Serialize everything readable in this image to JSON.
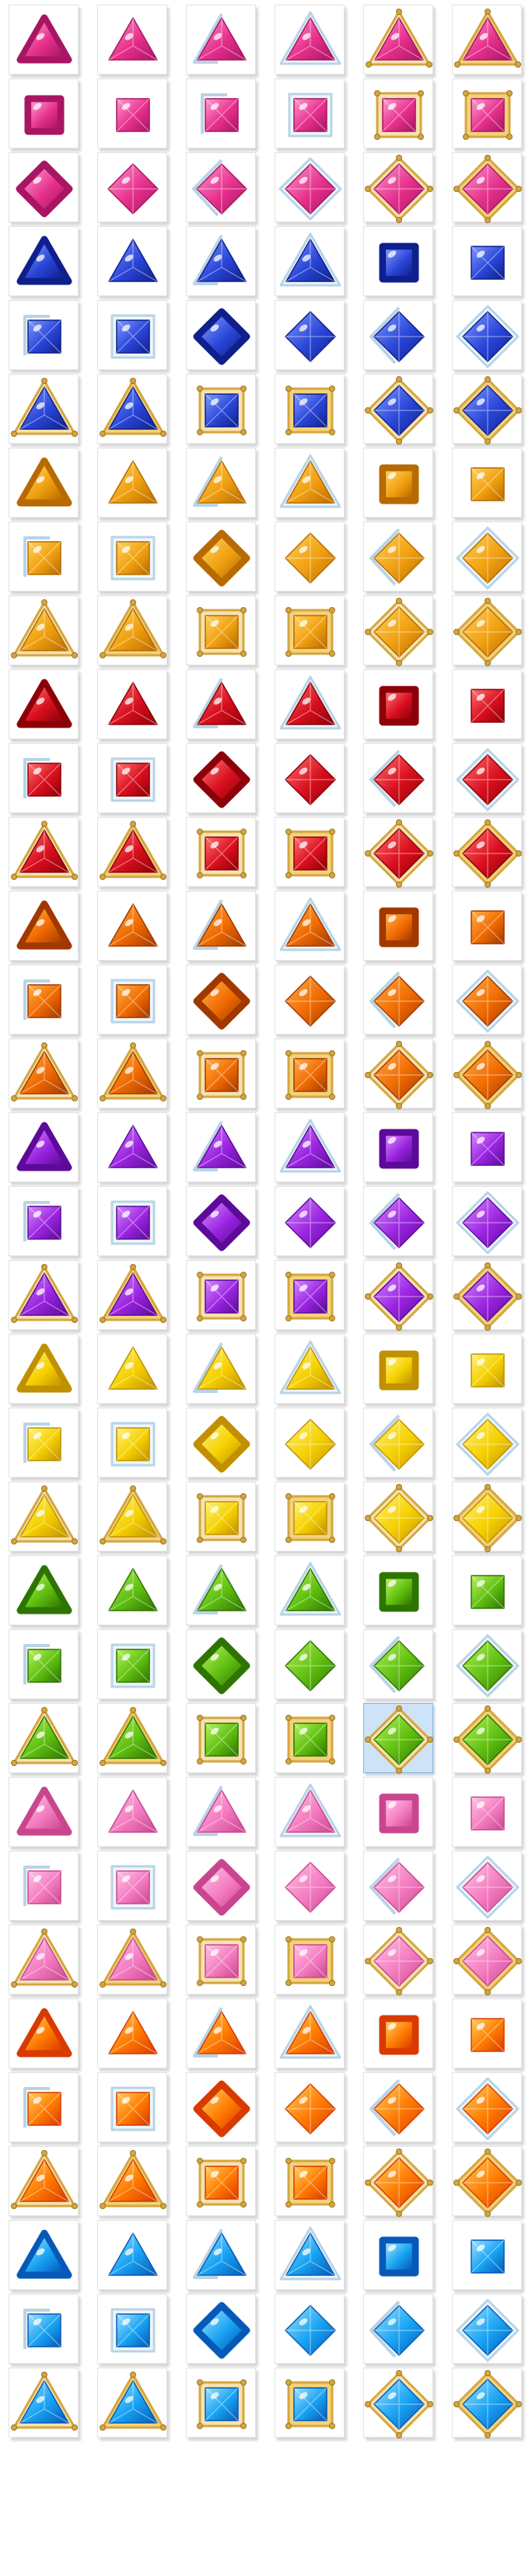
{
  "grid": {
    "columns": 6,
    "rows": 36,
    "selected": {
      "row": 23,
      "col": 4
    }
  },
  "colors": {
    "pink": [
      "#ff9ad0",
      "#e6308c",
      "#a81562"
    ],
    "blue": [
      "#7f9bff",
      "#2a46d8",
      "#0f1f8c"
    ],
    "amber": [
      "#ffd25e",
      "#f0a010",
      "#b76a00"
    ],
    "red": [
      "#ff7373",
      "#d90f1e",
      "#8c0008"
    ],
    "orange": [
      "#ffb04a",
      "#f06a00",
      "#a03800"
    ],
    "purple": [
      "#d68bff",
      "#9a24e0",
      "#5c0a99"
    ],
    "yellow": [
      "#fff27a",
      "#f5d000",
      "#c09000"
    ],
    "green": [
      "#b6f25c",
      "#5fbf10",
      "#2e7400"
    ],
    "lightpink": [
      "#ffc4e6",
      "#f47cc0",
      "#c9468e"
    ],
    "fireorange": [
      "#ffd060",
      "#ff7a00",
      "#d83a00"
    ],
    "skyblue": [
      "#9ee2ff",
      "#17a2f2",
      "#0659b8"
    ],
    "gold": "#d4a640",
    "silver": "#b8d4e6"
  },
  "gem_rows": [
    {
      "color": "pink",
      "cells": [
        [
          "roundtri",
          "none"
        ],
        [
          "tri",
          "none"
        ],
        [
          "tri",
          "silverleft"
        ],
        [
          "tri",
          "silverframe"
        ],
        [
          "tri",
          "goldframe"
        ],
        [
          "tri",
          "goldframe2"
        ]
      ]
    },
    {
      "color": "pink",
      "cells": [
        [
          "roundsq",
          "none"
        ],
        [
          "sq",
          "none"
        ],
        [
          "sq",
          "silverleft"
        ],
        [
          "sq",
          "silverframe"
        ],
        [
          "sq",
          "goldframe"
        ],
        [
          "sq",
          "goldframe2"
        ]
      ]
    },
    {
      "color": "pink",
      "cells": [
        [
          "roundrh",
          "none"
        ],
        [
          "rh",
          "none"
        ],
        [
          "rh",
          "silverleft"
        ],
        [
          "rh",
          "silverframe"
        ],
        [
          "rh",
          "goldframe"
        ],
        [
          "rh",
          "goldframe2"
        ]
      ]
    },
    {
      "color": "blue",
      "cells": [
        [
          "roundtri",
          "none"
        ],
        [
          "tri",
          "none"
        ],
        [
          "tri",
          "silverleft"
        ],
        [
          "tri",
          "silverframe"
        ],
        [
          "roundsq",
          "none"
        ],
        [
          "sq",
          "none"
        ]
      ]
    },
    {
      "color": "blue",
      "cells": [
        [
          "sq",
          "silverleft"
        ],
        [
          "sq",
          "silverframe"
        ],
        [
          "roundrh",
          "none"
        ],
        [
          "rh",
          "none"
        ],
        [
          "rh",
          "silverleft"
        ],
        [
          "rh",
          "silverframe"
        ]
      ]
    },
    {
      "color": "blue",
      "cells": [
        [
          "tri",
          "goldframe"
        ],
        [
          "tri",
          "goldframe2"
        ],
        [
          "sq",
          "goldframe"
        ],
        [
          "sq",
          "goldframe2"
        ],
        [
          "rh",
          "goldframe"
        ],
        [
          "rh",
          "goldframe2"
        ]
      ]
    },
    {
      "color": "amber",
      "cells": [
        [
          "roundtri",
          "none"
        ],
        [
          "tri",
          "none"
        ],
        [
          "tri",
          "silverleft"
        ],
        [
          "tri",
          "silverframe"
        ],
        [
          "roundsq",
          "none"
        ],
        [
          "sq",
          "none"
        ]
      ]
    },
    {
      "color": "amber",
      "cells": [
        [
          "sq",
          "silverleft"
        ],
        [
          "sq",
          "silverframe"
        ],
        [
          "roundrh",
          "none"
        ],
        [
          "rh",
          "none"
        ],
        [
          "rh",
          "silverleft"
        ],
        [
          "rh",
          "silverframe"
        ]
      ]
    },
    {
      "color": "amber",
      "cells": [
        [
          "tri",
          "goldframe"
        ],
        [
          "tri",
          "goldframe2"
        ],
        [
          "sq",
          "goldframe"
        ],
        [
          "sq",
          "goldframe2"
        ],
        [
          "rh",
          "goldframe"
        ],
        [
          "rh",
          "goldframe2"
        ]
      ]
    },
    {
      "color": "red",
      "cells": [
        [
          "roundtri",
          "none"
        ],
        [
          "tri",
          "none"
        ],
        [
          "tri",
          "silverleft"
        ],
        [
          "tri",
          "silverframe"
        ],
        [
          "roundsq",
          "none"
        ],
        [
          "sq",
          "none"
        ]
      ]
    },
    {
      "color": "red",
      "cells": [
        [
          "sq",
          "silverleft"
        ],
        [
          "sq",
          "silverframe"
        ],
        [
          "roundrh",
          "none"
        ],
        [
          "rh",
          "none"
        ],
        [
          "rh",
          "silverleft"
        ],
        [
          "rh",
          "silverframe"
        ]
      ]
    },
    {
      "color": "red",
      "cells": [
        [
          "tri",
          "goldframe"
        ],
        [
          "tri",
          "goldframe2"
        ],
        [
          "sq",
          "goldframe"
        ],
        [
          "sq",
          "goldframe2"
        ],
        [
          "rh",
          "goldframe"
        ],
        [
          "rh",
          "goldframe2"
        ]
      ]
    },
    {
      "color": "orange",
      "cells": [
        [
          "roundtri",
          "none"
        ],
        [
          "tri",
          "none"
        ],
        [
          "tri",
          "silverleft"
        ],
        [
          "tri",
          "silverframe"
        ],
        [
          "roundsq",
          "none"
        ],
        [
          "sq",
          "none"
        ]
      ]
    },
    {
      "color": "orange",
      "cells": [
        [
          "sq",
          "silverleft"
        ],
        [
          "sq",
          "silverframe"
        ],
        [
          "roundrh",
          "none"
        ],
        [
          "rh",
          "none"
        ],
        [
          "rh",
          "silverleft"
        ],
        [
          "rh",
          "silverframe"
        ]
      ]
    },
    {
      "color": "orange",
      "cells": [
        [
          "tri",
          "goldframe"
        ],
        [
          "tri",
          "goldframe2"
        ],
        [
          "sq",
          "goldframe"
        ],
        [
          "sq",
          "goldframe2"
        ],
        [
          "rh",
          "goldframe"
        ],
        [
          "rh",
          "goldframe2"
        ]
      ]
    },
    {
      "color": "purple",
      "cells": [
        [
          "roundtri",
          "none"
        ],
        [
          "tri",
          "none"
        ],
        [
          "tri",
          "silverleft"
        ],
        [
          "tri",
          "silverframe"
        ],
        [
          "roundsq",
          "none"
        ],
        [
          "sq",
          "none"
        ]
      ]
    },
    {
      "color": "purple",
      "cells": [
        [
          "sq",
          "silverleft"
        ],
        [
          "sq",
          "silverframe"
        ],
        [
          "roundrh",
          "none"
        ],
        [
          "rh",
          "none"
        ],
        [
          "rh",
          "silverleft"
        ],
        [
          "rh",
          "silverframe"
        ]
      ]
    },
    {
      "color": "purple",
      "cells": [
        [
          "tri",
          "goldframe"
        ],
        [
          "tri",
          "goldframe2"
        ],
        [
          "sq",
          "goldframe"
        ],
        [
          "sq",
          "goldframe2"
        ],
        [
          "rh",
          "goldframe"
        ],
        [
          "rh",
          "goldframe2"
        ]
      ]
    },
    {
      "color": "yellow",
      "cells": [
        [
          "roundtri",
          "none"
        ],
        [
          "tri",
          "none"
        ],
        [
          "tri",
          "silverleft"
        ],
        [
          "tri",
          "silverframe"
        ],
        [
          "roundsq",
          "none"
        ],
        [
          "sq",
          "none"
        ]
      ]
    },
    {
      "color": "yellow",
      "cells": [
        [
          "sq",
          "silverleft"
        ],
        [
          "sq",
          "silverframe"
        ],
        [
          "roundrh",
          "none"
        ],
        [
          "rh",
          "none"
        ],
        [
          "rh",
          "silverleft"
        ],
        [
          "rh",
          "silverframe"
        ]
      ]
    },
    {
      "color": "yellow",
      "cells": [
        [
          "tri",
          "goldframe"
        ],
        [
          "tri",
          "goldframe2"
        ],
        [
          "sq",
          "goldframe"
        ],
        [
          "sq",
          "goldframe2"
        ],
        [
          "rh",
          "goldframe"
        ],
        [
          "rh",
          "goldframe2"
        ]
      ]
    },
    {
      "color": "green",
      "cells": [
        [
          "roundtri",
          "none"
        ],
        [
          "tri",
          "none"
        ],
        [
          "tri",
          "silverleft"
        ],
        [
          "tri",
          "silverframe"
        ],
        [
          "roundsq",
          "none"
        ],
        [
          "sq",
          "none"
        ]
      ]
    },
    {
      "color": "green",
      "cells": [
        [
          "sq",
          "silverleft"
        ],
        [
          "sq",
          "silverframe"
        ],
        [
          "roundrh",
          "none"
        ],
        [
          "rh",
          "none"
        ],
        [
          "rh",
          "silverleft"
        ],
        [
          "rh",
          "silverframe"
        ]
      ]
    },
    {
      "color": "green",
      "cells": [
        [
          "tri",
          "goldframe"
        ],
        [
          "tri",
          "goldframe2"
        ],
        [
          "sq",
          "goldframe"
        ],
        [
          "sq",
          "goldframe2"
        ],
        [
          "rh",
          "goldframe"
        ],
        [
          "rh",
          "goldframe2"
        ]
      ]
    },
    {
      "color": "lightpink",
      "cells": [
        [
          "roundtri",
          "none"
        ],
        [
          "tri",
          "none"
        ],
        [
          "tri",
          "silverleft"
        ],
        [
          "tri",
          "silverframe"
        ],
        [
          "roundsq",
          "none"
        ],
        [
          "sq",
          "none"
        ]
      ]
    },
    {
      "color": "lightpink",
      "cells": [
        [
          "sq",
          "silverleft"
        ],
        [
          "sq",
          "silverframe"
        ],
        [
          "roundrh",
          "none"
        ],
        [
          "rh",
          "none"
        ],
        [
          "rh",
          "silverleft"
        ],
        [
          "rh",
          "silverframe"
        ]
      ]
    },
    {
      "color": "lightpink",
      "cells": [
        [
          "tri",
          "goldframe"
        ],
        [
          "tri",
          "goldframe2"
        ],
        [
          "sq",
          "goldframe"
        ],
        [
          "sq",
          "goldframe2"
        ],
        [
          "rh",
          "goldframe"
        ],
        [
          "rh",
          "goldframe2"
        ]
      ]
    },
    {
      "color": "fireorange",
      "cells": [
        [
          "roundtri",
          "none"
        ],
        [
          "tri",
          "none"
        ],
        [
          "tri",
          "silverleft"
        ],
        [
          "tri",
          "silverframe"
        ],
        [
          "roundsq",
          "none"
        ],
        [
          "sq",
          "none"
        ]
      ]
    },
    {
      "color": "fireorange",
      "cells": [
        [
          "sq",
          "silverleft"
        ],
        [
          "sq",
          "silverframe"
        ],
        [
          "roundrh",
          "none"
        ],
        [
          "rh",
          "none"
        ],
        [
          "rh",
          "silverleft"
        ],
        [
          "rh",
          "silverframe"
        ]
      ]
    },
    {
      "color": "fireorange",
      "cells": [
        [
          "tri",
          "goldframe"
        ],
        [
          "tri",
          "goldframe2"
        ],
        [
          "sq",
          "goldframe"
        ],
        [
          "sq",
          "goldframe2"
        ],
        [
          "rh",
          "goldframe"
        ],
        [
          "rh",
          "goldframe2"
        ]
      ]
    },
    {
      "color": "skyblue",
      "cells": [
        [
          "roundtri",
          "none"
        ],
        [
          "tri",
          "none"
        ],
        [
          "tri",
          "silverleft"
        ],
        [
          "tri",
          "silverframe"
        ],
        [
          "roundsq",
          "none"
        ],
        [
          "sq",
          "none"
        ]
      ]
    },
    {
      "color": "skyblue",
      "cells": [
        [
          "sq",
          "silverleft"
        ],
        [
          "sq",
          "silverframe"
        ],
        [
          "roundrh",
          "none"
        ],
        [
          "rh",
          "none"
        ],
        [
          "rh",
          "silverleft"
        ],
        [
          "rh",
          "silverframe"
        ]
      ]
    },
    {
      "color": "skyblue",
      "cells": [
        [
          "tri",
          "goldframe"
        ],
        [
          "tri",
          "goldframe2"
        ],
        [
          "sq",
          "goldframe"
        ],
        [
          "sq",
          "goldframe2"
        ],
        [
          "rh",
          "goldframe"
        ],
        [
          "rh",
          "goldframe2"
        ]
      ]
    }
  ]
}
